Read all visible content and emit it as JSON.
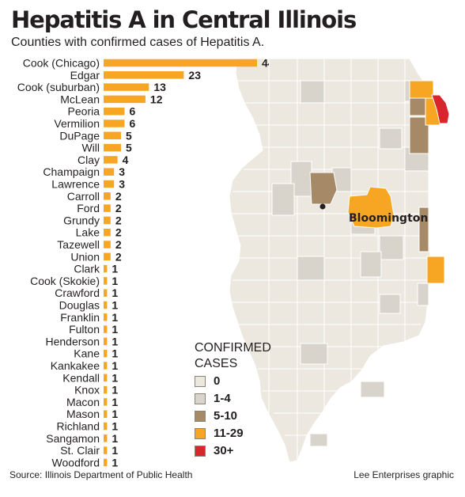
{
  "header": {
    "title": "Hepatitis A in Central Illinois",
    "subtitle": "Counties with confirmed cases of Hepatitis A."
  },
  "chart_data": {
    "type": "bar",
    "orientation": "horizontal",
    "title": "Hepatitis A in Central Illinois",
    "subtitle": "Counties with confirmed cases of Hepatitis A.",
    "categories": [
      "Cook (Chicago)",
      "Edgar",
      "Cook (suburban)",
      "McLean",
      "Peoria",
      "Vermilion",
      "DuPage",
      "Will",
      "Clay",
      "Champaign",
      "Lawrence",
      "Carroll",
      "Ford",
      "Grundy",
      "Lake",
      "Tazewell",
      "Union",
      "Clark",
      "Cook (Skokie)",
      "Crawford",
      "Douglas",
      "Franklin",
      "Fulton",
      "Henderson",
      "Kane",
      "Kankakee",
      "Kendall",
      "Knox",
      "Macon",
      "Mason",
      "Richland",
      "Sangamon",
      "St. Clair",
      "Woodford"
    ],
    "values": [
      44,
      23,
      13,
      12,
      6,
      6,
      5,
      5,
      4,
      3,
      3,
      2,
      2,
      2,
      2,
      2,
      2,
      1,
      1,
      1,
      1,
      1,
      1,
      1,
      1,
      1,
      1,
      1,
      1,
      1,
      1,
      1,
      1,
      1
    ],
    "bar_color": "#f6a623",
    "grid": false
  },
  "map": {
    "city_label": "Bloomington",
    "colors": {
      "land": "#ece8df",
      "border": "#ffffff",
      "lake": "#ffffff"
    }
  },
  "legend": {
    "title": "CONFIRMED CASES",
    "items": [
      {
        "label": "0",
        "color": "#ece8df"
      },
      {
        "label": "1-4",
        "color": "#d8d4cb"
      },
      {
        "label": "5-10",
        "color": "#a68a67"
      },
      {
        "label": "11-29",
        "color": "#f6a623"
      },
      {
        "label": "30+",
        "color": "#d7262c"
      }
    ]
  },
  "footer": {
    "source": "Source: Illinois Department of Public Health",
    "credit": "Lee Enterprises graphic"
  }
}
